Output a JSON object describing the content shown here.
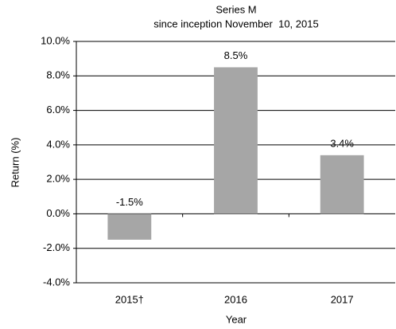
{
  "chart_data": {
    "type": "bar",
    "title": "Series M",
    "subtitle": "since inception November  10, 2015",
    "x_label": "Year",
    "y_label": "Return (%)",
    "categories": [
      "2015†",
      "2016",
      "2017"
    ],
    "values": [
      -1.5,
      8.5,
      3.4
    ],
    "value_labels": [
      "-1.5%",
      "8.5%",
      "3.4%"
    ],
    "color": "#a6a6a6",
    "ylim": [
      -4,
      10
    ],
    "yticks": [
      {
        "value": -4,
        "label": "-4.0%"
      },
      {
        "value": -2,
        "label": "-2.0%"
      },
      {
        "value": 0,
        "label": "0.0%"
      },
      {
        "value": 2,
        "label": "2.0%"
      },
      {
        "value": 4,
        "label": "4.0%"
      },
      {
        "value": 6,
        "label": "6.0%"
      },
      {
        "value": 8,
        "label": "8.0%"
      },
      {
        "value": 10,
        "label": "10.0%"
      }
    ],
    "grid": true
  }
}
